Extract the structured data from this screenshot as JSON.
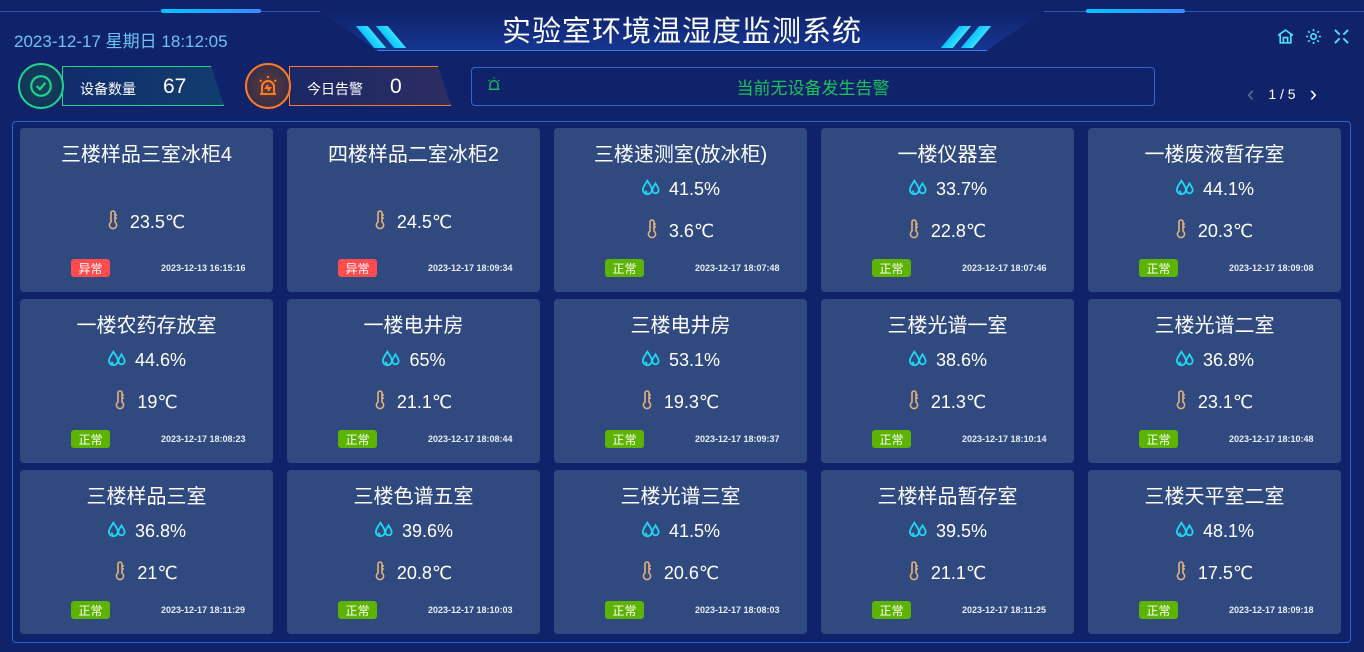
{
  "header": {
    "title": "实验室环境温湿度监测系统",
    "datetime": "2023-12-17 星期日 18:12:05",
    "icons": [
      "home-icon",
      "gear-icon",
      "fullscreen-icon"
    ]
  },
  "stats": {
    "devices": {
      "label": "设备数量",
      "value": "67",
      "color": "#1ed38a"
    },
    "alarms": {
      "label": "今日告警",
      "value": "0",
      "color": "#ff7a22"
    }
  },
  "alert": {
    "message": "当前无设备发生告警",
    "icon": "alarm-light-icon"
  },
  "pager": {
    "text": "1 / 5"
  },
  "colors": {
    "normal": "#5cb300",
    "abnormal": "#ff4d4f",
    "humidity": "#1fd8f0",
    "temperature": "#e3b27a"
  },
  "cards": [
    {
      "name": "三楼样品三室冰柜4",
      "humidity": "",
      "temp": "23.5℃",
      "status": "异常",
      "ok": false,
      "time": "2023-12-13 16:15:16"
    },
    {
      "name": "四楼样品二室冰柜2",
      "humidity": "",
      "temp": "24.5℃",
      "status": "异常",
      "ok": false,
      "time": "2023-12-17 18:09:34"
    },
    {
      "name": "三楼速测室(放冰柜)",
      "humidity": "41.5%",
      "temp": "3.6℃",
      "status": "正常",
      "ok": true,
      "time": "2023-12-17 18:07:48"
    },
    {
      "name": "一楼仪器室",
      "humidity": "33.7%",
      "temp": "22.8℃",
      "status": "正常",
      "ok": true,
      "time": "2023-12-17 18:07:46"
    },
    {
      "name": "一楼废液暂存室",
      "humidity": "44.1%",
      "temp": "20.3℃",
      "status": "正常",
      "ok": true,
      "time": "2023-12-17 18:09:08"
    },
    {
      "name": "一楼农药存放室",
      "humidity": "44.6%",
      "temp": "19℃",
      "status": "正常",
      "ok": true,
      "time": "2023-12-17 18:08:23"
    },
    {
      "name": "一楼电井房",
      "humidity": "65%",
      "temp": "21.1℃",
      "status": "正常",
      "ok": true,
      "time": "2023-12-17 18:08:44"
    },
    {
      "name": "三楼电井房",
      "humidity": "53.1%",
      "temp": "19.3℃",
      "status": "正常",
      "ok": true,
      "time": "2023-12-17 18:09:37"
    },
    {
      "name": "三楼光谱一室",
      "humidity": "38.6%",
      "temp": "21.3℃",
      "status": "正常",
      "ok": true,
      "time": "2023-12-17 18:10:14"
    },
    {
      "name": "三楼光谱二室",
      "humidity": "36.8%",
      "temp": "23.1℃",
      "status": "正常",
      "ok": true,
      "time": "2023-12-17 18:10:48"
    },
    {
      "name": "三楼样品三室",
      "humidity": "36.8%",
      "temp": "21℃",
      "status": "正常",
      "ok": true,
      "time": "2023-12-17 18:11:29"
    },
    {
      "name": "三楼色谱五室",
      "humidity": "39.6%",
      "temp": "20.8℃",
      "status": "正常",
      "ok": true,
      "time": "2023-12-17 18:10:03"
    },
    {
      "name": "三楼光谱三室",
      "humidity": "41.5%",
      "temp": "20.6℃",
      "status": "正常",
      "ok": true,
      "time": "2023-12-17 18:08:03"
    },
    {
      "name": "三楼样品暂存室",
      "humidity": "39.5%",
      "temp": "21.1℃",
      "status": "正常",
      "ok": true,
      "time": "2023-12-17 18:11:25"
    },
    {
      "name": "三楼天平室二室",
      "humidity": "48.1%",
      "temp": "17.5℃",
      "status": "正常",
      "ok": true,
      "time": "2023-12-17 18:09:18"
    }
  ]
}
